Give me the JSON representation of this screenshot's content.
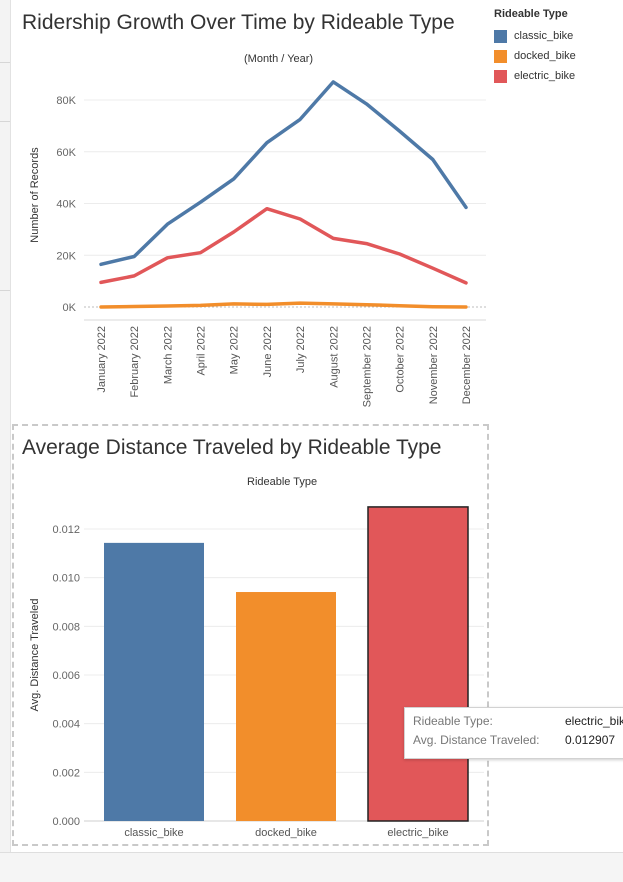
{
  "line_chart": {
    "title": "Ridership Growth Over Time by Rideable Type",
    "subtitle": "(Month / Year)",
    "ylabel": "Number of Records"
  },
  "legend": {
    "title": "Rideable Type",
    "items": [
      {
        "label": "classic_bike",
        "color": "#4e79a7"
      },
      {
        "label": "docked_bike",
        "color": "#f28e2b"
      },
      {
        "label": "electric_bike",
        "color": "#e15759"
      }
    ]
  },
  "bar_chart": {
    "title": "Average Distance Traveled by Rideable Type",
    "subtitle": "Rideable Type",
    "ylabel": "Avg. Distance Traveled"
  },
  "tooltip": {
    "label1": "Rideable Type:",
    "value1": "electric_bike",
    "label2": "Avg. Distance Traveled:",
    "value2": "0.012907"
  },
  "chart_data": [
    {
      "type": "line",
      "title": "Ridership Growth Over Time by Rideable Type",
      "subtitle": "(Month / Year)",
      "xlabel": "",
      "ylabel": "Number of Records",
      "categories": [
        "January 2022",
        "February 2022",
        "March 2022",
        "April 2022",
        "May 2022",
        "June 2022",
        "July 2022",
        "August 2022",
        "September 2022",
        "October 2022",
        "November 2022",
        "December 2022"
      ],
      "yticks": [
        0,
        20000,
        40000,
        60000,
        80000
      ],
      "ytick_labels": [
        "0K",
        "20K",
        "40K",
        "60K",
        "80K"
      ],
      "ylim": [
        0,
        90000
      ],
      "grid": true,
      "legend_position": "top-right",
      "series": [
        {
          "name": "classic_bike",
          "color": "#4e79a7",
          "values": [
            16500,
            19500,
            32000,
            40500,
            49500,
            63500,
            72500,
            87000,
            78500,
            68000,
            57000,
            38500
          ]
        },
        {
          "name": "docked_bike",
          "color": "#f28e2b",
          "values": [
            0,
            200,
            400,
            600,
            1200,
            1000,
            1500,
            1200,
            900,
            500,
            100,
            0
          ]
        },
        {
          "name": "electric_bike",
          "color": "#e15759",
          "values": [
            9500,
            12000,
            19000,
            21000,
            29000,
            38000,
            34000,
            26500,
            24500,
            20500,
            15000,
            9300
          ]
        }
      ]
    },
    {
      "type": "bar",
      "title": "Average Distance Traveled by Rideable Type",
      "subtitle": "Rideable Type",
      "xlabel": "",
      "ylabel": "Avg. Distance Traveled",
      "categories": [
        "classic_bike",
        "docked_bike",
        "electric_bike"
      ],
      "values": [
        0.01143,
        0.00941,
        0.012907
      ],
      "colors": [
        "#4e79a7",
        "#f28e2b",
        "#e15759"
      ],
      "yticks": [
        0,
        0.002,
        0.004,
        0.006,
        0.008,
        0.01,
        0.012
      ],
      "ytick_labels": [
        "0.000",
        "0.002",
        "0.004",
        "0.006",
        "0.008",
        "0.010",
        "0.012"
      ],
      "ylim": [
        0,
        0.0132
      ],
      "grid": true,
      "selected": "electric_bike"
    }
  ]
}
